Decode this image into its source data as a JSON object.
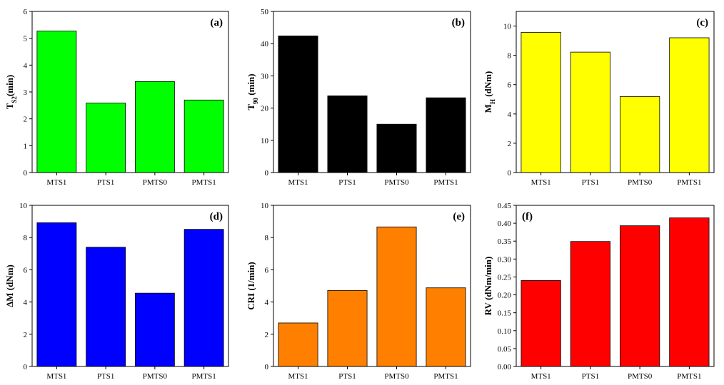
{
  "chart_data": [
    {
      "type": "bar",
      "panel_label": "(a)",
      "ylabel_main": "T",
      "ylabel_sub": "S2",
      "ylabel_tail": "(min)",
      "categories": [
        "MTS1",
        "PTS1",
        "PMTS0",
        "PMTS1"
      ],
      "values": [
        5.27,
        2.59,
        3.39,
        2.7
      ],
      "ylim": [
        0,
        6
      ],
      "yticks": [
        0,
        1,
        2,
        3,
        4,
        5,
        6
      ],
      "ytick_labels": [
        "0",
        "1",
        "2",
        "3",
        "4",
        "5",
        "6"
      ],
      "color": "#00ff00"
    },
    {
      "type": "bar",
      "panel_label": "(b)",
      "ylabel_main": "T",
      "ylabel_sub": "90",
      "ylabel_tail": " (min)",
      "categories": [
        "MTS1",
        "PTS1",
        "PMTS0",
        "PMTS1"
      ],
      "values": [
        42.4,
        23.8,
        15.0,
        23.2
      ],
      "ylim": [
        0,
        50
      ],
      "yticks": [
        0,
        10,
        20,
        30,
        40,
        50
      ],
      "ytick_labels": [
        "0",
        "10",
        "20",
        "30",
        "40",
        "50"
      ],
      "color": "#000000"
    },
    {
      "type": "bar",
      "panel_label": "(c)",
      "ylabel_main": "M",
      "ylabel_sub": "H",
      "ylabel_tail": " (dNm)",
      "categories": [
        "MTS1",
        "PTS1",
        "PMTS0",
        "PMTS1"
      ],
      "values": [
        9.57,
        8.22,
        5.19,
        9.2
      ],
      "ylim": [
        0,
        11
      ],
      "yticks": [
        0,
        2,
        4,
        6,
        8,
        10
      ],
      "ytick_labels": [
        "0",
        "2",
        "4",
        "6",
        "8",
        "10"
      ],
      "color": "#ffff00"
    },
    {
      "type": "bar",
      "panel_label": "(d)",
      "ylabel_main": "ΔM (dNm)",
      "ylabel_sub": "",
      "ylabel_tail": "",
      "categories": [
        "MTS1",
        "PTS1",
        "PMTS0",
        "PMTS1"
      ],
      "values": [
        8.92,
        7.4,
        4.55,
        8.51
      ],
      "ylim": [
        0,
        10
      ],
      "yticks": [
        0,
        2,
        4,
        6,
        8,
        10
      ],
      "ytick_labels": [
        "0",
        "2",
        "4",
        "6",
        "8",
        "10"
      ],
      "color": "#0000ff"
    },
    {
      "type": "bar",
      "panel_label": "(e)",
      "ylabel_main": "CRI (1/min)",
      "ylabel_sub": "",
      "ylabel_tail": "",
      "categories": [
        "MTS1",
        "PTS1",
        "PMTS0",
        "PMTS1"
      ],
      "values": [
        2.7,
        4.72,
        8.66,
        4.88
      ],
      "ylim": [
        0,
        10
      ],
      "yticks": [
        0,
        2,
        4,
        6,
        8,
        10
      ],
      "ytick_labels": [
        "0",
        "2",
        "4",
        "6",
        "8",
        "10"
      ],
      "color": "#ff8000"
    },
    {
      "type": "bar",
      "panel_label": "(f)",
      "ylabel_main": "RV (dNm/min)",
      "ylabel_sub": "",
      "ylabel_tail": "",
      "categories": [
        "MTS1",
        "PTS1",
        "PMTS0",
        "PMTS1"
      ],
      "values": [
        0.24,
        0.349,
        0.393,
        0.415
      ],
      "ylim": [
        0,
        0.45
      ],
      "yticks": [
        0,
        0.05,
        0.1,
        0.15,
        0.2,
        0.25,
        0.3,
        0.35,
        0.4,
        0.45
      ],
      "ytick_labels": [
        "0.00",
        "0.05",
        "0.10",
        "0.15",
        "0.20",
        "0.25",
        "0.30",
        "0.35",
        "0.40",
        "0.45"
      ],
      "color": "#ff0000"
    }
  ]
}
